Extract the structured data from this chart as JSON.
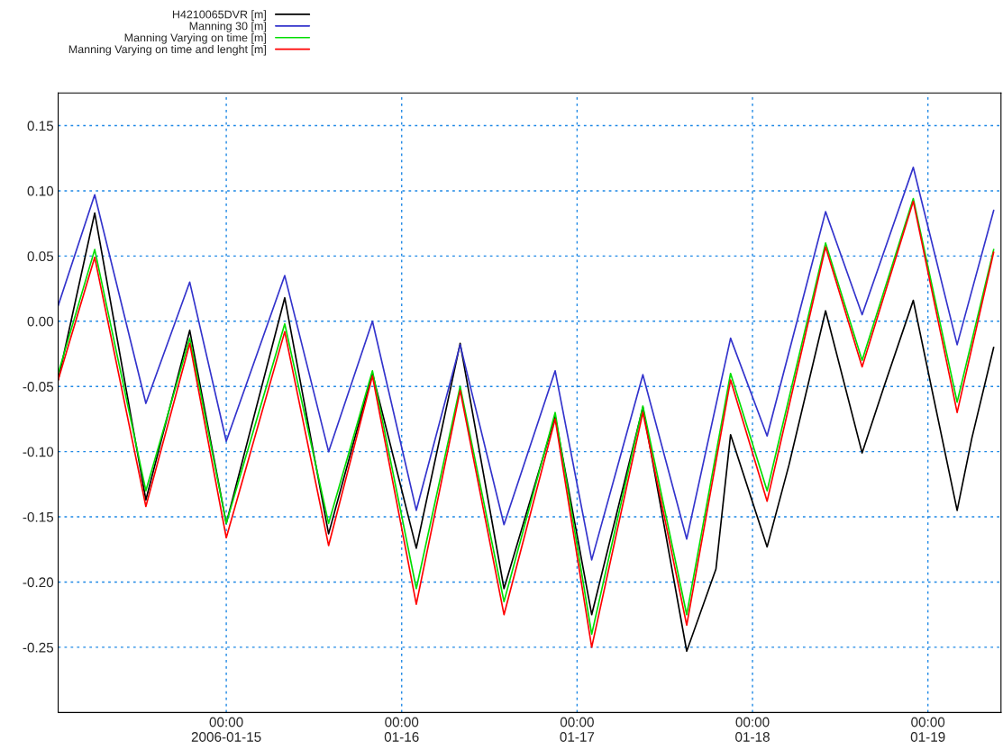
{
  "chart_data": {
    "type": "line",
    "x": [
      "2006-01-14T01:00",
      "2006-01-14T06:00",
      "2006-01-14T13:00",
      "2006-01-14T19:00",
      "2006-01-15T00:00",
      "2006-01-15T08:00",
      "2006-01-15T14:00",
      "2006-01-15T20:00",
      "2006-01-16T02:00",
      "2006-01-16T08:00",
      "2006-01-16T14:00",
      "2006-01-16T21:00",
      "2006-01-17T02:00",
      "2006-01-17T09:00",
      "2006-01-17T15:00",
      "2006-01-17T21:00",
      "2006-01-18T02:00",
      "2006-01-18T10:00",
      "2006-01-18T15:00",
      "2006-01-18T22:00",
      "2006-01-19T04:00",
      "2006-01-19T09:00"
    ],
    "series": [
      {
        "name": "H4210065DVR [m]",
        "color": "#000000",
        "x": [
          "2006-01-14T01:00",
          "2006-01-14T06:00",
          "2006-01-14T13:00",
          "2006-01-14T19:00",
          "2006-01-15T00:00",
          "2006-01-15T08:00",
          "2006-01-15T14:00",
          "2006-01-15T20:00",
          "2006-01-16T02:00",
          "2006-01-16T08:00",
          "2006-01-16T14:00",
          "2006-01-16T21:00",
          "2006-01-17T02:00",
          "2006-01-17T09:00",
          "2006-01-17T15:00",
          "2006-01-17T19:00",
          "2006-01-17T21:00",
          "2006-01-18T02:00",
          "2006-01-18T05:00",
          "2006-01-18T10:00",
          "2006-01-18T15:00",
          "2006-01-18T18:00",
          "2006-01-18T22:00",
          "2006-01-19T04:00",
          "2006-01-19T06:00",
          "2006-01-19T09:00"
        ],
        "values": [
          -0.045,
          0.083,
          -0.137,
          -0.007,
          -0.155,
          0.018,
          -0.163,
          -0.04,
          -0.174,
          -0.017,
          -0.205,
          -0.073,
          -0.225,
          -0.066,
          -0.253,
          -0.19,
          -0.087,
          -0.173,
          -0.11,
          0.008,
          -0.101,
          -0.05,
          0.016,
          -0.145,
          -0.09,
          -0.02
        ]
      },
      {
        "name": "Manning 30 [m]",
        "color": "#3333cc",
        "values": [
          0.012,
          0.097,
          -0.063,
          0.03,
          -0.092,
          0.035,
          -0.1,
          0.0,
          -0.145,
          -0.018,
          -0.156,
          -0.038,
          -0.183,
          -0.041,
          -0.167,
          -0.013,
          -0.088,
          0.084,
          0.005,
          0.118,
          -0.018,
          0.085
        ]
      },
      {
        "name": "Manning Varying on time [m]",
        "color": "#00dd00",
        "values": [
          -0.04,
          0.055,
          -0.13,
          -0.013,
          -0.155,
          -0.002,
          -0.155,
          -0.038,
          -0.205,
          -0.05,
          -0.215,
          -0.07,
          -0.24,
          -0.065,
          -0.225,
          -0.04,
          -0.13,
          0.06,
          -0.03,
          0.094,
          -0.062,
          0.055
        ]
      },
      {
        "name": "Manning Varying on time and lenght [m]",
        "color": "#ff0000",
        "values": [
          -0.045,
          0.049,
          -0.142,
          -0.017,
          -0.166,
          -0.008,
          -0.172,
          -0.042,
          -0.217,
          -0.053,
          -0.225,
          -0.075,
          -0.25,
          -0.07,
          -0.233,
          -0.045,
          -0.138,
          0.057,
          -0.035,
          0.092,
          -0.07,
          0.053
        ]
      }
    ],
    "xlim": [
      "2006-01-14T01:00",
      "2006-01-19T10:00"
    ],
    "xticks": [
      {
        "value": "2006-01-15T00:00",
        "label": "00:00\n2006-01-15"
      },
      {
        "value": "2006-01-16T00:00",
        "label": "00:00\n01-16"
      },
      {
        "value": "2006-01-17T00:00",
        "label": "00:00\n01-17"
      },
      {
        "value": "2006-01-18T00:00",
        "label": "00:00\n01-18"
      },
      {
        "value": "2006-01-19T00:00",
        "label": "00:00\n01-19"
      }
    ],
    "ylim": [
      -0.3,
      0.175
    ],
    "yticks": [
      {
        "value": 0.15,
        "label": "0.15"
      },
      {
        "value": 0.1,
        "label": "0.10"
      },
      {
        "value": 0.05,
        "label": "0.05"
      },
      {
        "value": 0.0,
        "label": "0.00"
      },
      {
        "value": -0.05,
        "label": "-0.05"
      },
      {
        "value": -0.1,
        "label": "-0.10"
      },
      {
        "value": -0.15,
        "label": "-0.15"
      },
      {
        "value": -0.2,
        "label": "-0.20"
      },
      {
        "value": -0.25,
        "label": "-0.25"
      }
    ],
    "grid": true,
    "legend": "top left",
    "line_style": "solid",
    "marker": "none"
  }
}
